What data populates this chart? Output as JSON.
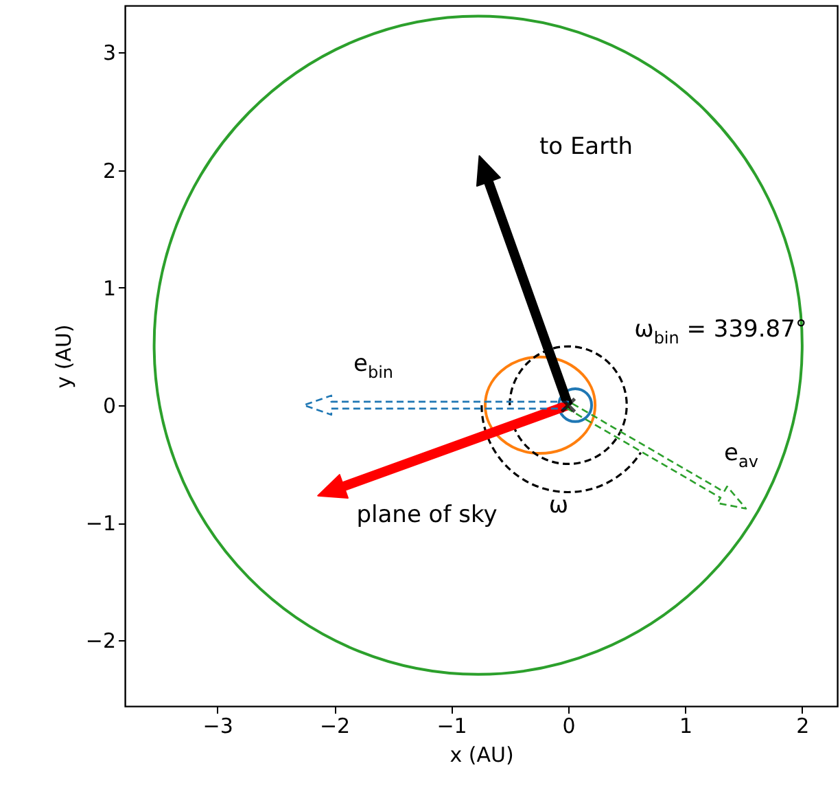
{
  "chart_data": {
    "type": "scatter",
    "xlabel": "x (AU)",
    "ylabel": "y (AU)",
    "xlim": [
      -3.79,
      2.3
    ],
    "ylim": [
      -2.56,
      3.4
    ],
    "xticks": [
      -3,
      -2,
      -1,
      0,
      1,
      2
    ],
    "yticks": [
      -2,
      -1,
      0,
      1,
      2,
      3
    ],
    "grid": false,
    "series": [
      {
        "color": "#000000",
        "marker": "cross",
        "x": [
          0
        ],
        "values": [
          0
        ]
      }
    ],
    "annotations": [
      "to Earth",
      "e$_{bin}$",
      "ω$_{bin}$ = 339.87°",
      "e$_{av}$",
      "plane of sky",
      "ω"
    ]
  }
}
